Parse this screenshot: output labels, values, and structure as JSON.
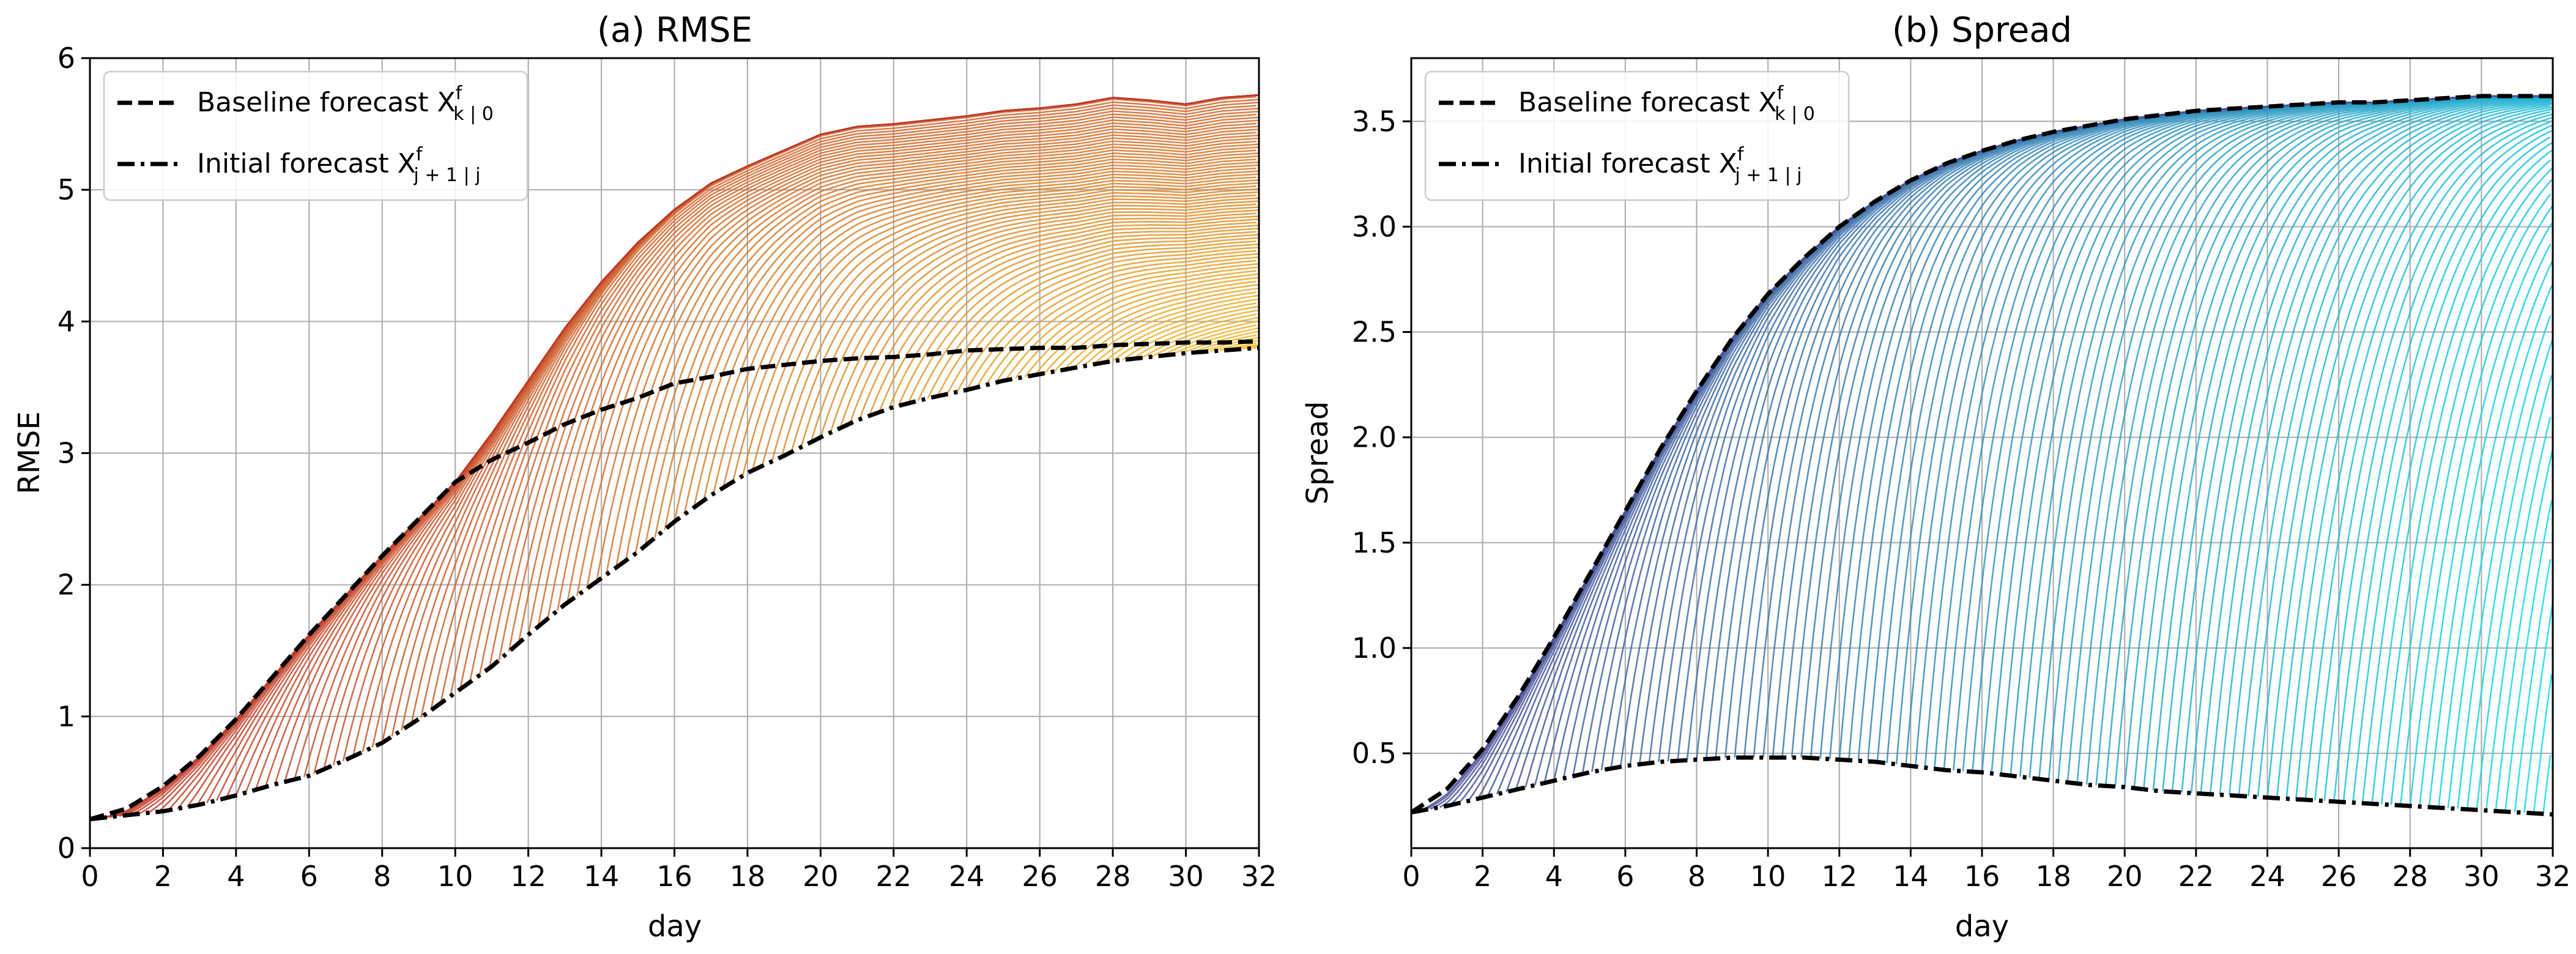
{
  "chart_data": [
    {
      "type": "line",
      "title": "(a) RMSE",
      "xlabel": "day",
      "ylabel": "RMSE",
      "xlim": [
        0,
        32
      ],
      "ylim": [
        0,
        6
      ],
      "grid": true,
      "legend_position": "top-left",
      "xticks": [
        0,
        2,
        4,
        6,
        8,
        10,
        12,
        14,
        16,
        18,
        20,
        22,
        24,
        26,
        28,
        30,
        32
      ],
      "yticks": [
        0,
        1,
        2,
        3,
        4,
        5,
        6
      ],
      "xtick_labels": [
        "0",
        "2",
        "4",
        "6",
        "8",
        "10",
        "12",
        "14",
        "16",
        "18",
        "20",
        "22",
        "24",
        "26",
        "28",
        "30",
        "32"
      ],
      "ytick_labels": [
        "0",
        "1",
        "2",
        "3",
        "4",
        "5",
        "6"
      ],
      "legend": [
        {
          "label": "Baseline forecast X",
          "sup": "f",
          "sub": "k | 0",
          "style": "dashed"
        },
        {
          "label": "Initial forecast X",
          "sup": "f",
          "sub": "j + 1 | j",
          "style": "dashdot"
        }
      ],
      "series": [
        {
          "name": "Baseline forecast",
          "x": [
            0,
            1,
            2,
            3,
            4,
            5,
            6,
            7,
            8,
            9,
            10,
            11,
            12,
            13,
            14,
            15,
            16,
            17,
            18,
            19,
            20,
            21,
            22,
            23,
            24,
            25,
            26,
            27,
            28,
            29,
            30,
            31,
            32
          ],
          "values": [
            0.22,
            0.3,
            0.47,
            0.7,
            0.98,
            1.3,
            1.62,
            1.92,
            2.22,
            2.5,
            2.78,
            2.95,
            3.08,
            3.22,
            3.33,
            3.42,
            3.53,
            3.58,
            3.64,
            3.67,
            3.7,
            3.72,
            3.73,
            3.75,
            3.78,
            3.79,
            3.8,
            3.8,
            3.82,
            3.83,
            3.84,
            3.84,
            3.85
          ]
        },
        {
          "name": "Initial forecast",
          "x": [
            0,
            1,
            2,
            3,
            4,
            5,
            6,
            7,
            8,
            9,
            10,
            11,
            12,
            13,
            14,
            15,
            16,
            17,
            18,
            19,
            20,
            21,
            22,
            23,
            24,
            25,
            26,
            27,
            28,
            29,
            30,
            31,
            32
          ],
          "values": [
            0.22,
            0.25,
            0.28,
            0.33,
            0.4,
            0.48,
            0.55,
            0.67,
            0.8,
            0.98,
            1.18,
            1.38,
            1.62,
            1.85,
            2.05,
            2.25,
            2.48,
            2.68,
            2.85,
            2.98,
            3.12,
            3.25,
            3.35,
            3.42,
            3.48,
            3.55,
            3.6,
            3.65,
            3.7,
            3.73,
            3.76,
            3.78,
            3.8
          ]
        },
        {
          "name": "Forecast envelope (upper)",
          "x": [
            0,
            1,
            2,
            3,
            4,
            5,
            6,
            7,
            8,
            9,
            10,
            11,
            12,
            13,
            14,
            15,
            16,
            17,
            18,
            19,
            20,
            21,
            22,
            23,
            24,
            25,
            26,
            27,
            28,
            29,
            30,
            31,
            32
          ],
          "values": [
            0.22,
            0.3,
            0.47,
            0.7,
            0.98,
            1.3,
            1.62,
            1.92,
            2.22,
            2.5,
            2.78,
            3.15,
            3.55,
            3.95,
            4.3,
            4.6,
            4.85,
            5.05,
            5.18,
            5.3,
            5.42,
            5.48,
            5.5,
            5.53,
            5.56,
            5.6,
            5.62,
            5.65,
            5.7,
            5.68,
            5.65,
            5.7,
            5.72
          ]
        }
      ]
    },
    {
      "type": "line",
      "title": "(b) Spread",
      "xlabel": "day",
      "ylabel": "Spread",
      "xlim": [
        0,
        32
      ],
      "ylim": [
        0.05,
        3.8
      ],
      "grid": true,
      "legend_position": "top-left",
      "xticks": [
        0,
        2,
        4,
        6,
        8,
        10,
        12,
        14,
        16,
        18,
        20,
        22,
        24,
        26,
        28,
        30,
        32
      ],
      "yticks": [
        0.5,
        1.0,
        1.5,
        2.0,
        2.5,
        3.0,
        3.5
      ],
      "xtick_labels": [
        "0",
        "2",
        "4",
        "6",
        "8",
        "10",
        "12",
        "14",
        "16",
        "18",
        "20",
        "22",
        "24",
        "26",
        "28",
        "30",
        "32"
      ],
      "ytick_labels": [
        "0.5",
        "1.0",
        "1.5",
        "2.0",
        "2.5",
        "3.0",
        "3.5"
      ],
      "legend": [
        {
          "label": "Baseline forecast X",
          "sup": "f",
          "sub": "k | 0",
          "style": "dashed"
        },
        {
          "label": "Initial forecast X",
          "sup": "f",
          "sub": "j + 1 | j",
          "style": "dashdot"
        }
      ],
      "series": [
        {
          "name": "Baseline forecast",
          "x": [
            0,
            1,
            2,
            3,
            4,
            5,
            6,
            7,
            8,
            9,
            10,
            11,
            12,
            13,
            14,
            15,
            16,
            17,
            18,
            19,
            20,
            21,
            22,
            23,
            24,
            25,
            26,
            27,
            28,
            29,
            30,
            31,
            32
          ],
          "values": [
            0.22,
            0.33,
            0.52,
            0.77,
            1.05,
            1.35,
            1.65,
            1.95,
            2.22,
            2.47,
            2.68,
            2.85,
            3.0,
            3.12,
            3.22,
            3.3,
            3.36,
            3.41,
            3.45,
            3.48,
            3.51,
            3.53,
            3.55,
            3.56,
            3.57,
            3.58,
            3.59,
            3.59,
            3.6,
            3.61,
            3.62,
            3.62,
            3.62
          ]
        },
        {
          "name": "Initial forecast",
          "x": [
            0,
            1,
            2,
            3,
            4,
            5,
            6,
            7,
            8,
            9,
            10,
            11,
            12,
            13,
            14,
            15,
            16,
            17,
            18,
            19,
            20,
            21,
            22,
            23,
            24,
            25,
            26,
            27,
            28,
            29,
            30,
            31,
            32
          ],
          "values": [
            0.22,
            0.25,
            0.29,
            0.33,
            0.37,
            0.41,
            0.44,
            0.46,
            0.47,
            0.48,
            0.48,
            0.48,
            0.47,
            0.46,
            0.44,
            0.42,
            0.41,
            0.39,
            0.37,
            0.35,
            0.34,
            0.32,
            0.31,
            0.3,
            0.29,
            0.28,
            0.27,
            0.26,
            0.25,
            0.24,
            0.23,
            0.22,
            0.21
          ]
        }
      ]
    }
  ],
  "colors": {
    "rmse_early": "#c0392b",
    "rmse_late": "#f2c12e",
    "rmse_envelope": "#c76a10",
    "spread_early": "#4b4e96",
    "spread_late": "#13e0ee",
    "reference_line": "#000000"
  }
}
